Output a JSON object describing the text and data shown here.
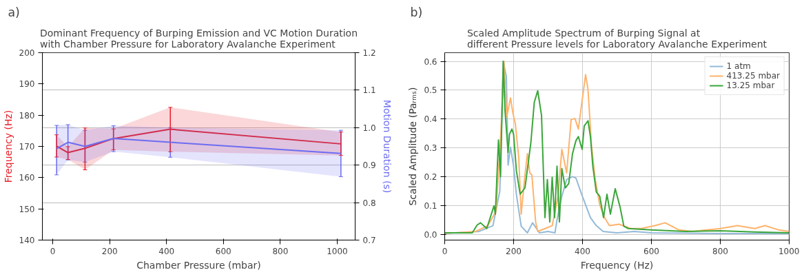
{
  "chart_data": [
    {
      "type": "line",
      "title": "Dominant Frequency of Burping Emission and VC Motion Duration\nwith Chamber Pressure for Laboratory Avalanche Experiment",
      "xlabel": "Chamber Pressure (mbar)",
      "ylabel": "Frequency (Hz)",
      "y2label": "Motion Duration (s)",
      "annotations": [
        "a)"
      ],
      "x": [
        13.25,
        53.25,
        113.25,
        213.25,
        413.25,
        1013.25
      ],
      "series": [
        {
          "color": "#e8202a",
          "axis": "y",
          "values": [
            170.1,
            168.0,
            169.4,
            172.5,
            175.5,
            170.8
          ],
          "errors": [
            [
              166.6,
              173.7
            ],
            [
              165.8,
              169.9
            ],
            [
              162.5,
              175.9
            ],
            [
              168.9,
              175.6
            ],
            [
              168.3,
              182.5
            ],
            [
              167.1,
              174.6
            ]
          ],
          "lower": [
            166.6,
            165.8,
            162.5,
            168.9,
            168.3,
            167.1
          ],
          "upper": [
            173.7,
            169.9,
            175.9,
            175.6,
            182.5,
            174.6
          ]
        },
        {
          "color": "#6c6cf2",
          "axis": "y2",
          "values": [
            0.944,
            0.961,
            0.95,
            0.971,
            0.961,
            0.931
          ],
          "errors": [
            [
              0.874,
              1.006
            ],
            [
              0.914,
              1.008
            ],
            [
              0.908,
              0.993
            ],
            [
              0.936,
              1.005
            ],
            [
              0.921,
              1.0
            ],
            [
              0.869,
              0.993
            ]
          ],
          "lower": [
            0.874,
            0.914,
            0.908,
            0.936,
            0.921,
            0.869
          ],
          "upper": [
            1.006,
            1.008,
            0.993,
            1.005,
            1.0,
            0.993
          ]
        }
      ],
      "xlim": [
        -36.75,
        1063.25
      ],
      "xticks": [
        0,
        200,
        400,
        600,
        800,
        1000
      ],
      "ylim": [
        140,
        200
      ],
      "yticks": [
        140,
        150,
        160,
        170,
        180,
        190,
        200
      ],
      "y2lim": [
        0.7,
        1.2
      ],
      "y2ticks": [
        0.7,
        0.8,
        0.9,
        {
          "value": 1.0,
          "label": "1.0"
        },
        1.1,
        1.2
      ],
      "grid": "y2",
      "legend": false
    },
    {
      "type": "line",
      "title": "Scaled Amplitude Spectrum of Burping Signal at\ndifferent Pressure levels for Laboratory Avalanche Experiment",
      "xlabel": "Frequency (Hz)",
      "ylabel": "Scaled Amplitude (Paᵣₘₛ)",
      "annotations": [
        "b)"
      ],
      "series": [
        {
          "name": "1 atm",
          "color": "#94bad9",
          "x": [
            0,
            100,
            140,
            160,
            170,
            179,
            184,
            191,
            200,
            208,
            222,
            240,
            255,
            275,
            300,
            320,
            326,
            340,
            354,
            371,
            381,
            395,
            409,
            423,
            440,
            460,
            500,
            550,
            600,
            800,
            1000
          ],
          "values": [
            0.003,
            0.01,
            0.03,
            0.15,
            0.6,
            0.547,
            0.24,
            0.302,
            0.236,
            0.139,
            0.028,
            0.005,
            0.04,
            0.005,
            0.01,
            0.005,
            0.05,
            0.132,
            0.19,
            0.2,
            0.195,
            0.147,
            0.102,
            0.058,
            0.03,
            0.01,
            0.005,
            0.01,
            0.005,
            0.003,
            0.003
          ]
        },
        {
          "name": "413.25 mbar",
          "color": "#ffb36b",
          "x": [
            0,
            90,
            125,
            149,
            163,
            172,
            180,
            191,
            198,
            205,
            215,
            222,
            233,
            240,
            247,
            253,
            264,
            270,
            291,
            312,
            329,
            340,
            354,
            367,
            378,
            388,
            399,
            409,
            416,
            426,
            437,
            450,
            464,
            478,
            506,
            540,
            570,
            610,
            640,
            680,
            720,
            800,
            850,
            900,
            930,
            970,
            1000
          ],
          "values": [
            0.003,
            0.01,
            0.03,
            0.08,
            0.35,
            0.6,
            0.406,
            0.473,
            0.42,
            0.384,
            0.265,
            0.07,
            0.206,
            0.28,
            0.213,
            0.206,
            0.043,
            0.01,
            0.02,
            0.03,
            0.132,
            0.295,
            0.213,
            0.398,
            0.402,
            0.365,
            0.465,
            0.554,
            0.502,
            0.309,
            0.19,
            0.102,
            0.058,
            0.03,
            0.035,
            0.02,
            0.02,
            0.03,
            0.04,
            0.015,
            0.01,
            0.02,
            0.03,
            0.02,
            0.03,
            0.015,
            0.01
          ]
        },
        {
          "name": "13.25 mbar",
          "color": "#3aa63a",
          "x": [
            0,
            80,
            94,
            104,
            122,
            143,
            147,
            156,
            162,
            170,
            175,
            184,
            188,
            195,
            200,
            208,
            219,
            233,
            250,
            260,
            270,
            281,
            291,
            298,
            305,
            312,
            319,
            326,
            333,
            340,
            350,
            360,
            371,
            381,
            388,
            399,
            405,
            416,
            423,
            430,
            440,
            450,
            461,
            471,
            481,
            495,
            509,
            520,
            533,
            600,
            700,
            800,
            900,
            1000
          ],
          "values": [
            0.005,
            0.005,
            0.032,
            0.04,
            0.02,
            0.099,
            0.07,
            0.327,
            0.2,
            0.6,
            0.43,
            0.284,
            0.347,
            0.365,
            0.347,
            0.221,
            0.139,
            0.161,
            0.317,
            0.458,
            0.498,
            0.413,
            0.058,
            0.19,
            0.043,
            0.198,
            0.058,
            0.236,
            0.043,
            0.228,
            0.161,
            0.176,
            0.28,
            0.325,
            0.339,
            0.295,
            0.376,
            0.394,
            0.339,
            0.236,
            0.147,
            0.132,
            0.058,
            0.139,
            0.07,
            0.158,
            0.095,
            0.028,
            0.02,
            0.015,
            0.01,
            0.012,
            0.008,
            0.005
          ]
        }
      ],
      "xlim": [
        0,
        1000
      ],
      "xticks": [
        0,
        200,
        400,
        600,
        800,
        1000
      ],
      "ylim": [
        -0.02,
        0.63
      ],
      "yticks": [
        {
          "value": 0,
          "label": "0.0"
        },
        0.1,
        0.2,
        0.3,
        0.4,
        0.5,
        0.6
      ],
      "grid": true,
      "legend": "top right"
    }
  ]
}
